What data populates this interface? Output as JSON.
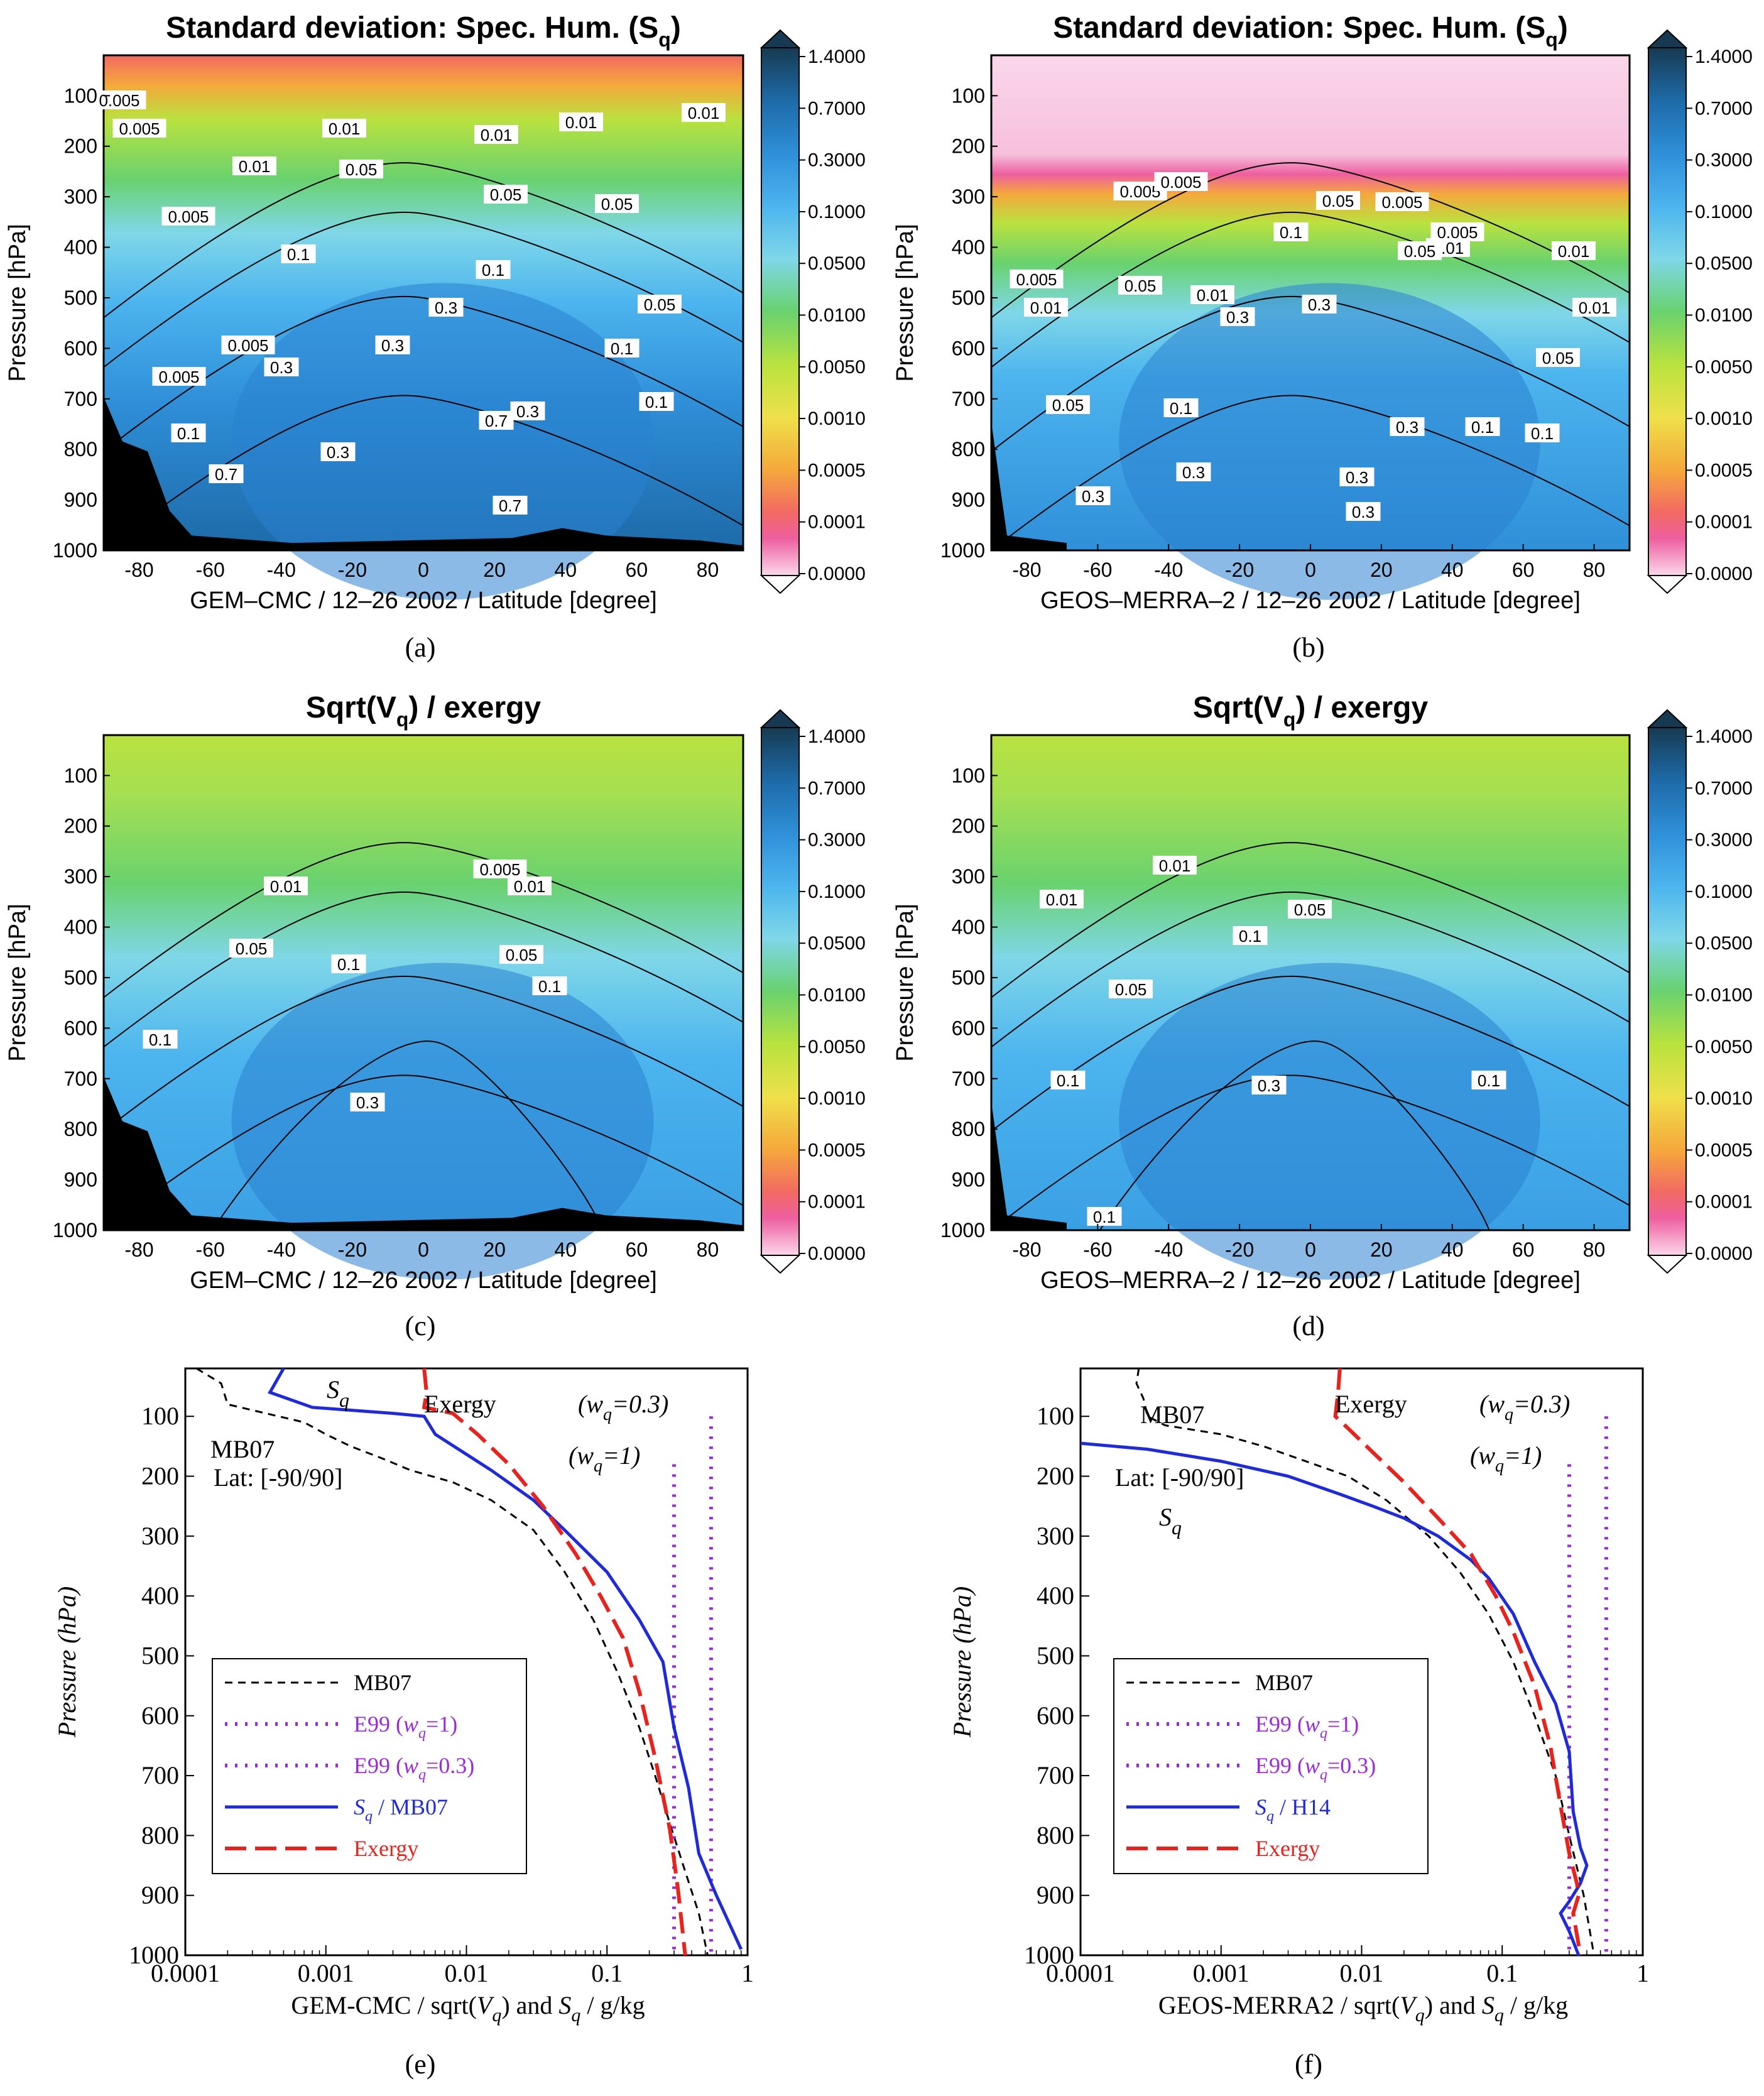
{
  "colorbar": {
    "ticks": [
      "1.4000",
      "0.7000",
      "0.3000",
      "0.1000",
      "0.0500",
      "0.0100",
      "0.0050",
      "0.0010",
      "0.0005",
      "0.0001",
      "0.0000"
    ],
    "colors": [
      "#173a52",
      "#1d6aa8",
      "#2f8fd8",
      "#4cb4ee",
      "#7fd7e8",
      "#69d26e",
      "#b9e23f",
      "#efe04a",
      "#f5a83c",
      "#f26a62",
      "#ee5fa0",
      "#fbd7ea"
    ]
  },
  "panels": [
    {
      "id": "a",
      "label": "(a)",
      "title_main": "Standard deviation: Spec. Hum. (S",
      "title_sub": "q",
      "title_end": ")",
      "xlabel": "GEM–CMC / 12–26 2002 / Latitude [degree]",
      "ylabel": "Pressure [hPa]",
      "contour_labels": [
        "0.005",
        "0.005",
        "0.005",
        "0.005",
        "0.005",
        "0.01",
        "0.01",
        "0.01",
        "0.01",
        "0.01",
        "0.05",
        "0.05",
        "0.05",
        "0.05",
        "0.1",
        "0.1",
        "0.1",
        "0.1",
        "0.1",
        "0.3",
        "0.3",
        "0.3",
        "0.3",
        "0.3",
        "0.7",
        "0.7",
        "0.7"
      ]
    },
    {
      "id": "b",
      "label": "(b)",
      "title_main": "Standard deviation: Spec. Hum. (S",
      "title_sub": "q",
      "title_end": ")",
      "xlabel": "GEOS–MERRA–2 / 12–26 2002 / Latitude [degree]",
      "ylabel": "Pressure [hPa]",
      "contour_labels": [
        "0.005",
        "0.005",
        "0.005",
        "0.005",
        "0.005",
        "0.01",
        "0.01",
        "0.01",
        "0.01",
        "0.01",
        "0.05",
        "0.05",
        "0.05",
        "0.05",
        "0.05",
        "0.1",
        "0.1",
        "0.1",
        "0.1",
        "0.3",
        "0.3",
        "0.3",
        "0.3",
        "0.3",
        "0.3",
        "0.3"
      ]
    },
    {
      "id": "c",
      "label": "(c)",
      "title_main": "Sqrt(V",
      "title_sub": "q",
      "title_end": ") / exergy",
      "xlabel": "GEM–CMC / 12–26 2002 / Latitude [degree]",
      "ylabel": "Pressure [hPa]",
      "contour_labels": [
        "0.01",
        "0.005",
        "0.01",
        "0.05",
        "0.05",
        "0.1",
        "0.1",
        "0.1",
        "0.3"
      ]
    },
    {
      "id": "d",
      "label": "(d)",
      "title_main": "Sqrt(V",
      "title_sub": "q",
      "title_end": ") / exergy",
      "xlabel": "GEOS–MERRA–2 / 12–26 2002 / Latitude [degree]",
      "ylabel": "Pressure [hPa]",
      "contour_labels": [
        "0.01",
        "0.01",
        "0.05",
        "0.05",
        "0.1",
        "0.1",
        "0.1",
        "0.3",
        "0.1"
      ]
    }
  ],
  "chart_data": [
    {
      "type": "heatmap",
      "panel": "(a)",
      "x_axis": {
        "label": "Latitude [degree]",
        "range": [
          -90,
          90
        ],
        "ticks": [
          -80,
          -60,
          -40,
          -20,
          0,
          20,
          40,
          60,
          80
        ]
      },
      "y_axis": {
        "label": "Pressure [hPa]",
        "range": [
          20,
          1000
        ],
        "ticks": [
          100,
          200,
          300,
          400,
          500,
          600,
          700,
          800,
          900,
          1000
        ]
      }
    },
    {
      "type": "heatmap",
      "panel": "(b)",
      "x_axis": {
        "label": "Latitude [degree]",
        "range": [
          -90,
          90
        ],
        "ticks": [
          -80,
          -60,
          -40,
          -20,
          0,
          20,
          40,
          60,
          80
        ]
      },
      "y_axis": {
        "label": "Pressure [hPa]",
        "range": [
          20,
          1000
        ],
        "ticks": [
          100,
          200,
          300,
          400,
          500,
          600,
          700,
          800,
          900,
          1000
        ]
      }
    },
    {
      "type": "heatmap",
      "panel": "(c)",
      "x_axis": {
        "label": "Latitude [degree]",
        "range": [
          -90,
          90
        ],
        "ticks": [
          -80,
          -60,
          -40,
          -20,
          0,
          20,
          40,
          60,
          80
        ]
      },
      "y_axis": {
        "label": "Pressure [hPa]",
        "range": [
          20,
          1000
        ],
        "ticks": [
          100,
          200,
          300,
          400,
          500,
          600,
          700,
          800,
          900,
          1000
        ]
      }
    },
    {
      "type": "heatmap",
      "panel": "(d)",
      "x_axis": {
        "label": "Latitude [degree]",
        "range": [
          -90,
          90
        ],
        "ticks": [
          -80,
          -60,
          -40,
          -20,
          0,
          20,
          40,
          60,
          80
        ]
      },
      "y_axis": {
        "label": "Pressure [hPa]",
        "range": [
          20,
          1000
        ],
        "ticks": [
          100,
          200,
          300,
          400,
          500,
          600,
          700,
          800,
          900,
          1000
        ]
      }
    },
    {
      "type": "line",
      "panel": "(e)",
      "x_scale": "log",
      "xlim": [
        0.0001,
        1
      ],
      "ylim": [
        1000,
        20
      ],
      "x_ticks": [
        "0.0001",
        "0.001",
        "0.01",
        "0.1",
        "1"
      ],
      "y_ticks": [
        100,
        200,
        300,
        400,
        500,
        600,
        700,
        800,
        900,
        1000
      ],
      "ylabel": "Pressure (hPa)",
      "xlabel_prefix": "GEM-CMC / sqrt(",
      "xlabel_mid": ") and ",
      "xlabel_end": " / g/kg",
      "inset_text": "Lat: [-90/90]",
      "annotations": {
        "mb07": "MB07",
        "sq": "S",
        "exergy": "Exergy",
        "w03": "(w",
        "w03_end": "=0.3)",
        "w1": "(w",
        "w1_end": "=1)"
      },
      "legend": [
        "MB07",
        "E99 (",
        "E99 (",
        "",
        "Exergy"
      ],
      "legend_text": {
        "mb07": "MB07",
        "e99a": "E99 (",
        "e99a_end": "=1)",
        "e99b": "E99 (",
        "e99b_end": "=0.3)",
        "sq": "S",
        "sq_end": " / MB07",
        "exergy": "Exergy"
      },
      "series": [
        {
          "name": "MB07",
          "style": "dashed",
          "color": "#000000",
          "x": [
            0.00012,
            0.00018,
            0.0002,
            0.0007,
            0.001,
            0.0015,
            0.0025,
            0.004,
            0.008,
            0.015,
            0.03,
            0.05,
            0.08,
            0.12,
            0.17,
            0.22,
            0.28,
            0.36,
            0.45,
            0.52
          ],
          "y": [
            20,
            45,
            80,
            110,
            130,
            150,
            170,
            190,
            210,
            240,
            290,
            360,
            440,
            530,
            620,
            700,
            780,
            860,
            930,
            1000
          ]
        },
        {
          "name": "E99 (wq=1)",
          "style": "dotted",
          "color": "#9a2bd8",
          "x": [
            0.3,
            0.3
          ],
          "y": [
            180,
            1000
          ]
        },
        {
          "name": "E99 (wq=0.3)",
          "style": "dotted",
          "color": "#9a2bd8",
          "x": [
            0.55,
            0.55
          ],
          "y": [
            100,
            1000
          ]
        },
        {
          "name": "Sq / MB07",
          "style": "solid",
          "color": "#1f2bd8",
          "x": [
            0.0005,
            0.0004,
            0.0008,
            0.003,
            0.005,
            0.006,
            0.015,
            0.03,
            0.05,
            0.1,
            0.17,
            0.25,
            0.3,
            0.38,
            0.45,
            0.6,
            0.9
          ],
          "y": [
            20,
            60,
            85,
            95,
            100,
            130,
            190,
            240,
            290,
            360,
            440,
            510,
            620,
            720,
            830,
            900,
            990
          ]
        },
        {
          "name": "Exergy",
          "style": "dashed",
          "color": "#e8221c",
          "x": [
            0.005,
            0.0052,
            0.005,
            0.008,
            0.012,
            0.02,
            0.035,
            0.06,
            0.09,
            0.13,
            0.17,
            0.22,
            0.28,
            0.32,
            0.36
          ],
          "y": [
            20,
            60,
            85,
            95,
            130,
            180,
            250,
            330,
            400,
            470,
            560,
            670,
            790,
            890,
            1000
          ]
        }
      ]
    },
    {
      "type": "line",
      "panel": "(f)",
      "x_scale": "log",
      "xlim": [
        0.0001,
        1
      ],
      "ylim": [
        1000,
        20
      ],
      "x_ticks": [
        "0.0001",
        "0.001",
        "0.01",
        "0.1",
        "1"
      ],
      "y_ticks": [
        100,
        200,
        300,
        400,
        500,
        600,
        700,
        800,
        900,
        1000
      ],
      "ylabel": "Pressure (hPa)",
      "xlabel_prefix": "GEOS-MERRA2 / sqrt(",
      "xlabel_mid": ") and ",
      "xlabel_end": " / g/kg",
      "inset_text": "Lat: [-90/90]",
      "annotations": {
        "mb07": "MB07",
        "sq": "S",
        "exergy": "Exergy",
        "w03": "(w",
        "w03_end": "=0.3)",
        "w1": "(w",
        "w1_end": "=1)"
      },
      "legend_text": {
        "mb07": "MB07",
        "e99a": "E99 (",
        "e99a_end": "=1)",
        "e99b": "E99 (",
        "e99b_end": "=0.3)",
        "sq": "S",
        "sq_end": " / H14",
        "exergy": "Exergy"
      },
      "series": [
        {
          "name": "MB07",
          "style": "dashed",
          "color": "#000000",
          "x": [
            0.00026,
            0.00025,
            0.00028,
            0.0003,
            0.0004,
            0.001,
            0.002,
            0.004,
            0.008,
            0.015,
            0.03,
            0.05,
            0.08,
            0.12,
            0.17,
            0.24,
            0.3,
            0.38,
            0.45
          ],
          "y": [
            20,
            45,
            70,
            100,
            115,
            130,
            150,
            175,
            200,
            240,
            300,
            360,
            430,
            510,
            600,
            700,
            800,
            900,
            1000
          ]
        },
        {
          "name": "E99 (wq=1)",
          "style": "dotted",
          "color": "#9a2bd8",
          "x": [
            0.3,
            0.3
          ],
          "y": [
            180,
            1000
          ]
        },
        {
          "name": "E99 (wq=0.3)",
          "style": "dotted",
          "color": "#9a2bd8",
          "x": [
            0.55,
            0.55
          ],
          "y": [
            100,
            1000
          ]
        },
        {
          "name": "Sq / H14",
          "style": "solid",
          "color": "#1f2bd8",
          "x": [
            0.0001,
            0.0003,
            0.001,
            0.003,
            0.007,
            0.012,
            0.02,
            0.035,
            0.06,
            0.08,
            0.12,
            0.17,
            0.24,
            0.3,
            0.32,
            0.36,
            0.4,
            0.36,
            0.3,
            0.26,
            0.3,
            0.35
          ],
          "y": [
            145,
            155,
            175,
            200,
            230,
            250,
            270,
            300,
            340,
            370,
            430,
            510,
            580,
            660,
            760,
            820,
            850,
            880,
            910,
            930,
            960,
            1000
          ]
        },
        {
          "name": "Exergy",
          "style": "dashed",
          "color": "#e8221c",
          "x": [
            0.007,
            0.0068,
            0.0065,
            0.008,
            0.012,
            0.02,
            0.035,
            0.06,
            0.09,
            0.12,
            0.17,
            0.22,
            0.26,
            0.3,
            0.34,
            0.35,
            0.32,
            0.36
          ],
          "y": [
            20,
            60,
            100,
            120,
            160,
            210,
            270,
            330,
            400,
            460,
            550,
            650,
            750,
            830,
            880,
            900,
            930,
            1000
          ]
        }
      ]
    }
  ]
}
